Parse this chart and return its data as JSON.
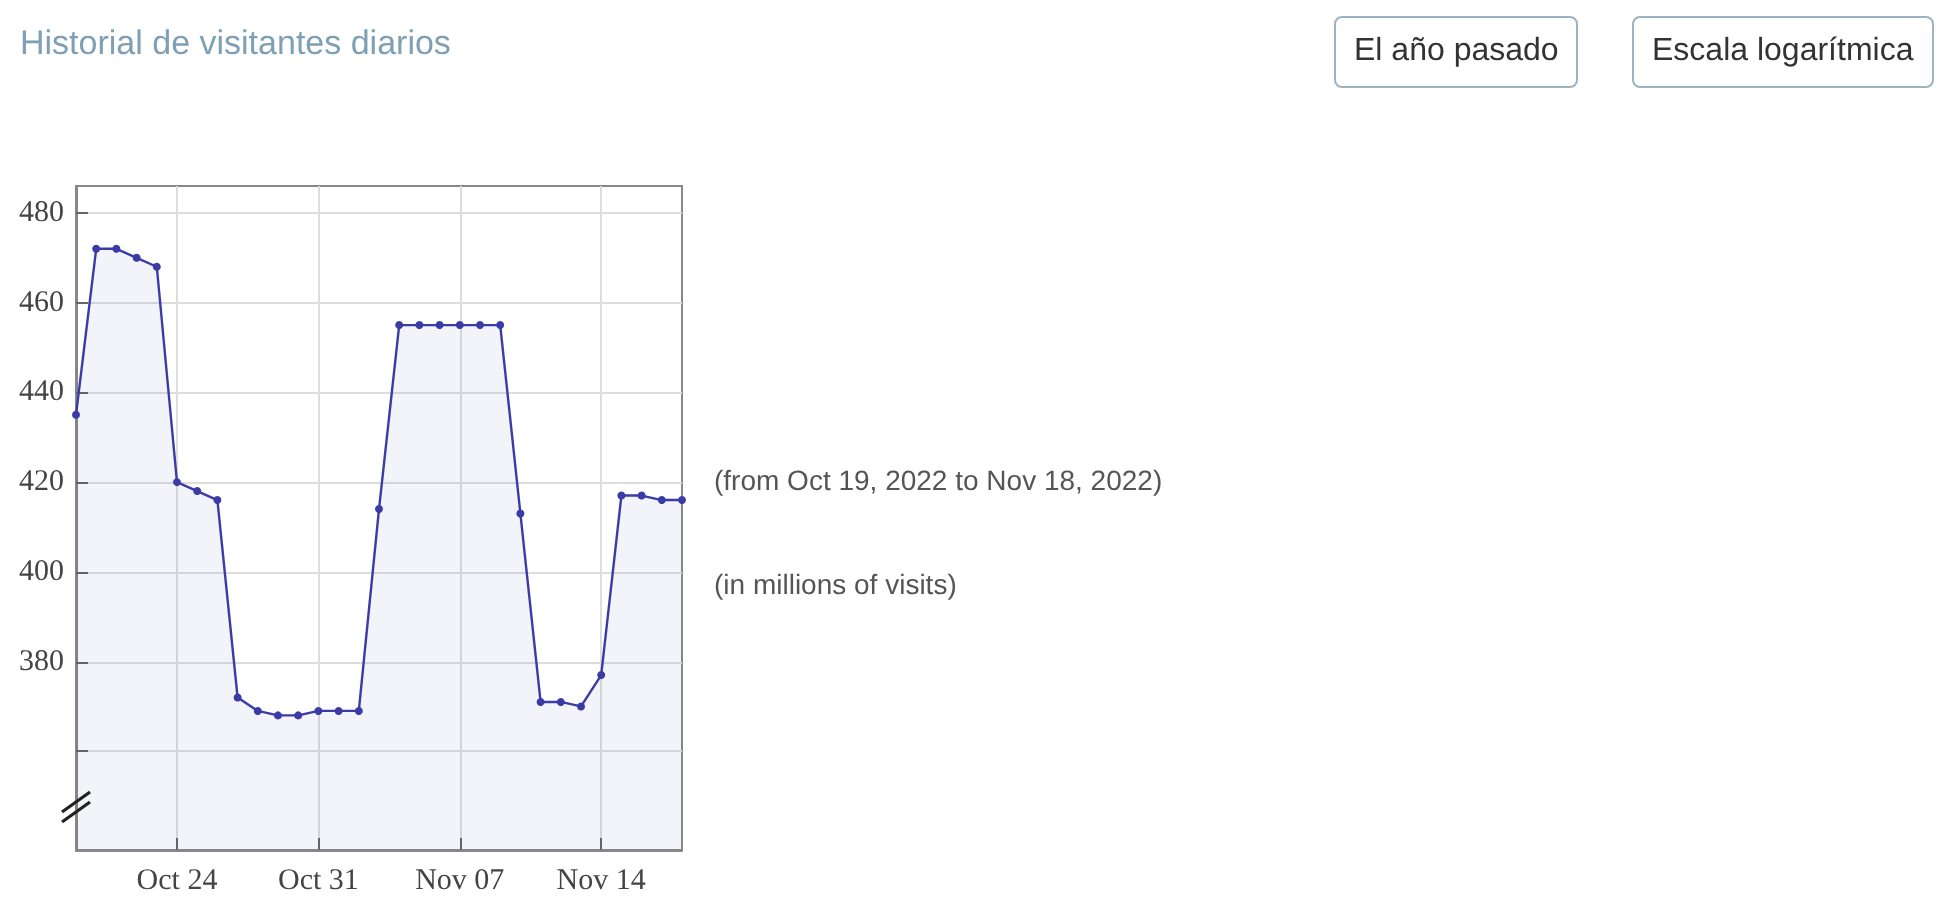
{
  "chart_data": {
    "type": "area",
    "title": "Historial de visitantes diarios",
    "annotations": [
      "El año pasado",
      "Escala logarítmica",
      "(from Oct 19, 2022 to Nov 18, 2022)",
      "(in millions of visits)"
    ],
    "x": [
      "2022-10-19",
      "2022-10-20",
      "2022-10-21",
      "2022-10-22",
      "2022-10-23",
      "2022-10-24",
      "2022-10-25",
      "2022-10-26",
      "2022-10-27",
      "2022-10-28",
      "2022-10-29",
      "2022-10-30",
      "2022-10-31",
      "2022-11-01",
      "2022-11-02",
      "2022-11-03",
      "2022-11-04",
      "2022-11-05",
      "2022-11-06",
      "2022-11-07",
      "2022-11-08",
      "2022-11-09",
      "2022-11-10",
      "2022-11-11",
      "2022-11-12",
      "2022-11-13",
      "2022-11-14",
      "2022-11-15",
      "2022-11-16",
      "2022-11-17",
      "2022-11-18"
    ],
    "series": [
      {
        "color": "#3b3ba8",
        "values": [
          435,
          472,
          472,
          470,
          468,
          420,
          418,
          416,
          372,
          369,
          368,
          368,
          369,
          369,
          369,
          414,
          455,
          455,
          455,
          455,
          455,
          455,
          413,
          371,
          371,
          370,
          377,
          417,
          417,
          416,
          416
        ]
      }
    ],
    "xlim": [
      "2022-10-19",
      "2022-11-18"
    ],
    "xticks": [
      {
        "value": "2022-10-24",
        "label": "Oct 24"
      },
      {
        "value": "2022-10-31",
        "label": "Oct 31"
      },
      {
        "value": "2022-11-07",
        "label": "Nov 07"
      },
      {
        "value": "2022-11-14",
        "label": "Nov 14"
      }
    ],
    "ylim": [
      338,
      486
    ],
    "yticks": [
      {
        "value": 360,
        "label": null
      },
      380,
      400,
      420,
      440,
      460,
      480
    ],
    "grid": true,
    "marker": "circle",
    "line_style": "solid"
  }
}
